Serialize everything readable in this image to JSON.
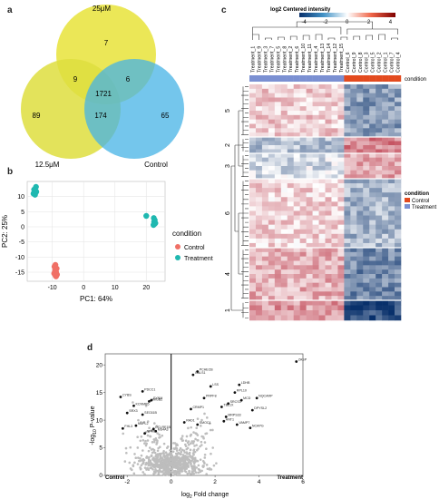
{
  "panels": {
    "a": {
      "letter": "a"
    },
    "b": {
      "letter": "b"
    },
    "c": {
      "letter": "c"
    },
    "d": {
      "letter": "d"
    }
  },
  "venn": {
    "sets": [
      {
        "name": "25μM",
        "color": "#e7e33a"
      },
      {
        "name": "12.5μM",
        "color": "#dede3e"
      },
      {
        "name": "Control",
        "color": "#45b3e6"
      }
    ],
    "counts": {
      "only_25": "7",
      "only_12_5": "89",
      "only_control": "65",
      "25_and_12_5": "9",
      "25_and_control": "6",
      "12_5_and_control": "174",
      "all": "1721"
    }
  },
  "chart_data": [
    {
      "type": "scatter",
      "panel": "b",
      "xlabel": "PC1: 64%",
      "ylabel": "PC2: 25%",
      "xlim": [
        -18,
        26
      ],
      "ylim": [
        -18,
        15
      ],
      "xticks": [
        -10,
        0,
        10,
        20
      ],
      "yticks": [
        -15,
        -10,
        -5,
        0,
        5,
        10
      ],
      "grid": true,
      "legend": {
        "title": "condition",
        "placement": "right"
      },
      "series": [
        {
          "name": "Control",
          "color": "#f07066",
          "points": [
            [
              -9,
              -12.6
            ],
            [
              -9.3,
              -13.2
            ],
            [
              -8.6,
              -13.8
            ],
            [
              -9.1,
              -14.4
            ],
            [
              -8.8,
              -15.0
            ],
            [
              -9.4,
              -15.4
            ],
            [
              -8.5,
              -15.8
            ],
            [
              -9.0,
              -16.1
            ],
            [
              -8.8,
              -16.4
            ],
            [
              -9.2,
              -13.0
            ]
          ]
        },
        {
          "name": "Treatment",
          "color": "#1fb8b0",
          "points": [
            [
              -15.2,
              13.2
            ],
            [
              -15.8,
              12.3
            ],
            [
              -15.1,
              11.6
            ],
            [
              -16.0,
              11.0
            ],
            [
              -15.5,
              10.6
            ],
            [
              -15.3,
              11.8
            ],
            [
              20.0,
              3.6
            ],
            [
              22.4,
              2.9
            ],
            [
              22.7,
              2.2
            ],
            [
              22.5,
              1.6
            ],
            [
              22.9,
              1.2
            ],
            [
              22.6,
              0.9
            ],
            [
              22.3,
              0.6
            ]
          ]
        }
      ]
    },
    {
      "type": "heatmap",
      "panel": "c",
      "legend_title": "log2 Centered intensity",
      "scale_ticks": [
        "-4",
        "-2",
        "0",
        "2",
        "4"
      ],
      "columns": [
        "Treatment_1",
        "Treatment_9",
        "Treatment_3",
        "Treatment_7",
        "Treatment_5",
        "Treatment_8",
        "Treatment_2",
        "Treatment_6",
        "Treatment_10",
        "Treatment_11",
        "Treatment_4",
        "Treatment_13",
        "Treatment_14",
        "Treatment_12",
        "Treatment_15",
        "Control_6",
        "Control_9",
        "Control_8",
        "Control_3",
        "Control_5",
        "Control_2",
        "Control_1",
        "Control_7",
        "Control_4"
      ],
      "condition_label": "condition",
      "condition_legend": {
        "title": "condition",
        "items": [
          {
            "name": "Control",
            "color": "#e34a1e"
          },
          {
            "name": "Treatment",
            "color": "#7b90d2"
          }
        ]
      },
      "row_clusters": [
        "5",
        "2",
        "3",
        "6",
        "4",
        "1"
      ]
    },
    {
      "type": "scatter",
      "panel": "d",
      "xlabel": "log2 Fold change",
      "ylabel": "-log10 P-value",
      "xlim": [
        -3,
        6
      ],
      "ylim": [
        0,
        22
      ],
      "xticks": [
        -2,
        0,
        2,
        4,
        6
      ],
      "yticks": [
        0,
        5,
        10,
        15,
        20
      ],
      "corner_labels": {
        "left": "Control",
        "right": "Treatment"
      },
      "labeled_points": [
        {
          "label": "ZASP",
          "x": 5.7,
          "y": 20.6
        },
        {
          "label": "PCHECB",
          "x": 1.2,
          "y": 18.8
        },
        {
          "label": "GALS1",
          "x": 1.0,
          "y": 18.2
        },
        {
          "label": "LDHB",
          "x": 3.1,
          "y": 16.4
        },
        {
          "label": "LSS",
          "x": 1.8,
          "y": 16.1
        },
        {
          "label": "RPL10",
          "x": 2.9,
          "y": 15.0
        },
        {
          "label": "PDCC1",
          "x": -1.3,
          "y": 15.2
        },
        {
          "label": "CYBS",
          "x": -2.3,
          "y": 14.2
        },
        {
          "label": "NQCARP",
          "x": 3.9,
          "y": 14.0
        },
        {
          "label": "PRPF8",
          "x": 1.5,
          "y": 14.0
        },
        {
          "label": "MCD",
          "x": 3.2,
          "y": 13.6
        },
        {
          "label": "HMGB2",
          "x": -1.0,
          "y": 13.4
        },
        {
          "label": "SYNM",
          "x": -0.9,
          "y": 13.6
        },
        {
          "label": "SRCS3",
          "x": 2.6,
          "y": 13.0
        },
        {
          "label": "KCNMB5",
          "x": -1.7,
          "y": 12.6
        },
        {
          "label": "CRMP1",
          "x": 0.9,
          "y": 12.0
        },
        {
          "label": "TBL1X",
          "x": 2.3,
          "y": 12.4
        },
        {
          "label": "DPYSL2",
          "x": 3.7,
          "y": 11.8
        },
        {
          "label": "SRX3",
          "x": -2.0,
          "y": 11.3
        },
        {
          "label": "SEC61B",
          "x": -1.3,
          "y": 11.0
        },
        {
          "label": "MRPS33",
          "x": 2.5,
          "y": 10.6
        },
        {
          "label": "ANT1",
          "x": 2.4,
          "y": 9.8
        },
        {
          "label": "RAD1",
          "x": 0.6,
          "y": 9.6
        },
        {
          "label": "SMOC1",
          "x": 1.2,
          "y": 9.2
        },
        {
          "label": "VAMP7",
          "x": 3.0,
          "y": 9.2
        },
        {
          "label": "NUPL2",
          "x": -1.6,
          "y": 9.0
        },
        {
          "label": "NCAPG",
          "x": 3.6,
          "y": 8.6
        },
        {
          "label": "FHL3",
          "x": -2.2,
          "y": 8.5
        },
        {
          "label": "DCLRE1B",
          "x": -0.8,
          "y": 8.4
        },
        {
          "label": "MS4A3",
          "x": -0.7,
          "y": 8.0
        },
        {
          "label": "NPM3",
          "x": -1.2,
          "y": 7.6
        }
      ]
    }
  ]
}
